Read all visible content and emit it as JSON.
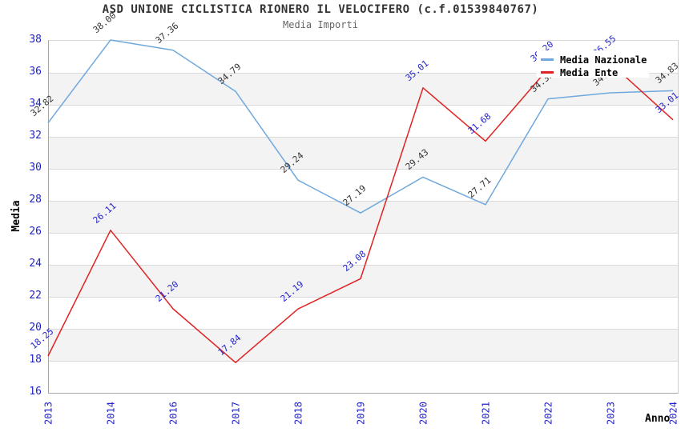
{
  "header": {
    "title": "ASD UNIONE CICLISTICA RIONERO IL VELOCIFERO (c.f.01539840767)",
    "subtitle": "Media Importi"
  },
  "axes": {
    "y_title": "Media",
    "x_title": "Anno",
    "y_tick_color": "#2222cc",
    "x_tick_labels": [
      "2013",
      "2014",
      "2016",
      "2017",
      "2018",
      "2019",
      "2020",
      "2021",
      "2022",
      "2023",
      "2024"
    ],
    "y_tick_labels": [
      "16",
      "18",
      "20",
      "22",
      "24",
      "26",
      "28",
      "30",
      "32",
      "34",
      "36",
      "38"
    ]
  },
  "legend": {
    "items": [
      {
        "label": "Media Nazionale",
        "color": "#6fa8dc"
      },
      {
        "label": "Media Ente",
        "color": "#e02222"
      }
    ],
    "position": "top-right"
  },
  "chart_data": {
    "type": "line",
    "x": [
      "2013",
      "2014",
      "2016",
      "2017",
      "2018",
      "2019",
      "2020",
      "2021",
      "2022",
      "2023",
      "2024"
    ],
    "series": [
      {
        "name": "Media Nazionale",
        "color": "#6fa8dc",
        "label_color": "#333333",
        "values": [
          32.82,
          38.0,
          37.36,
          34.79,
          29.24,
          27.19,
          29.43,
          27.71,
          34.32,
          34.7,
          34.83
        ]
      },
      {
        "name": "Media Ente",
        "color": "#e02222",
        "label_color": "#2222cc",
        "values": [
          18.25,
          26.11,
          21.2,
          17.84,
          21.19,
          23.08,
          35.01,
          31.68,
          36.2,
          36.55,
          33.01
        ]
      }
    ],
    "ylim": [
      16,
      38
    ],
    "y_tick_step": 2,
    "grid": "horizontal, alternating gray bands on 18-20, 22-24, 26-28, 30-32, 34-36",
    "data_labels": "each point labeled with value, rotated ~40deg; labels near legend are partially hidden behind legend box"
  }
}
